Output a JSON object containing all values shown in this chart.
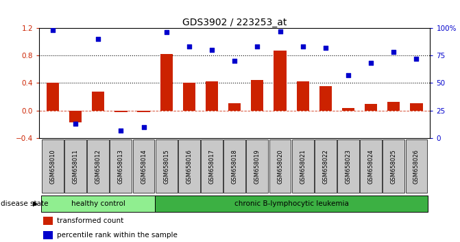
{
  "title": "GDS3902 / 223253_at",
  "samples": [
    "GSM658010",
    "GSM658011",
    "GSM658012",
    "GSM658013",
    "GSM658014",
    "GSM658015",
    "GSM658016",
    "GSM658017",
    "GSM658018",
    "GSM658019",
    "GSM658020",
    "GSM658021",
    "GSM658022",
    "GSM658023",
    "GSM658024",
    "GSM658025",
    "GSM658026"
  ],
  "bar_values": [
    0.4,
    -0.17,
    0.27,
    -0.02,
    -0.02,
    0.82,
    0.4,
    0.42,
    0.1,
    0.44,
    0.87,
    0.42,
    0.35,
    0.03,
    0.09,
    0.12,
    0.1
  ],
  "dot_values": [
    98,
    13,
    90,
    7,
    10,
    96,
    83,
    80,
    70,
    83,
    97,
    83,
    82,
    57,
    68,
    78,
    72
  ],
  "ylim_left": [
    -0.4,
    1.2
  ],
  "ylim_right": [
    0,
    100
  ],
  "yticks_left": [
    -0.4,
    0.0,
    0.4,
    0.8,
    1.2
  ],
  "yticks_right": [
    0,
    25,
    50,
    75,
    100
  ],
  "ytick_labels_right": [
    "0",
    "25",
    "50",
    "75",
    "100%"
  ],
  "hlines": [
    0.4,
    0.8
  ],
  "bar_color": "#CC2200",
  "dot_color": "#0000CC",
  "zero_line_color": "#CC2200",
  "hline_color": "#000000",
  "healthy_count": 5,
  "group1_label": "healthy control",
  "group2_label": "chronic B-lymphocytic leukemia",
  "group1_color": "#90EE90",
  "group2_color": "#3CB043",
  "disease_state_label": "disease state",
  "legend_bar_label": "transformed count",
  "legend_dot_label": "percentile rank within the sample",
  "bg_color": "#FFFFFF",
  "tick_label_color_left": "#CC2200",
  "tick_label_color_right": "#0000CC",
  "title_fontsize": 10,
  "axis_tick_fontsize": 7.5,
  "sample_label_fontsize": 6,
  "bar_width": 0.55
}
